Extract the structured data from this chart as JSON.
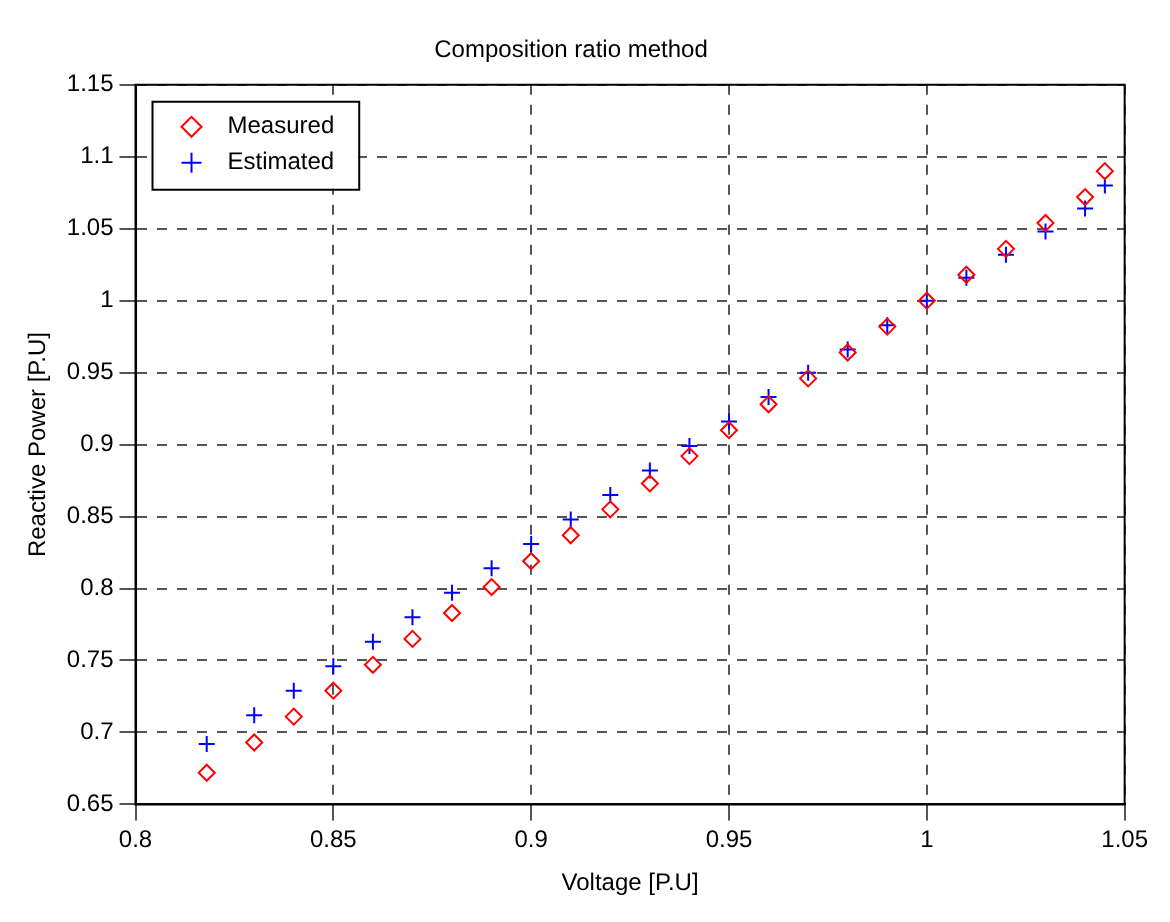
{
  "chart_data": {
    "type": "scatter",
    "title": "Composition ratio method",
    "xlabel": "Voltage [P.U]",
    "ylabel": "Reactive Power [P.U]",
    "x": [
      0.818,
      0.83,
      0.84,
      0.85,
      0.86,
      0.87,
      0.88,
      0.89,
      0.9,
      0.91,
      0.92,
      0.93,
      0.94,
      0.95,
      0.96,
      0.97,
      0.98,
      0.99,
      1.0,
      1.01,
      1.02,
      1.03,
      1.04,
      1.045
    ],
    "series": [
      {
        "name": "Measured",
        "color": "#ff0000",
        "marker": "diamond",
        "values": [
          0.672,
          0.693,
          0.711,
          0.729,
          0.747,
          0.765,
          0.783,
          0.801,
          0.819,
          0.837,
          0.855,
          0.873,
          0.892,
          0.91,
          0.928,
          0.946,
          0.964,
          0.982,
          1.0,
          1.018,
          1.036,
          1.054,
          1.072,
          1.09
        ]
      },
      {
        "name": "Estimated",
        "color": "#0000ff",
        "marker": "cross",
        "values": [
          0.692,
          0.712,
          0.729,
          0.746,
          0.763,
          0.78,
          0.797,
          0.814,
          0.831,
          0.848,
          0.865,
          0.882,
          0.899,
          0.916,
          0.933,
          0.95,
          0.966,
          0.983,
          1.0,
          1.016,
          1.032,
          1.048,
          1.064,
          1.08
        ]
      }
    ],
    "xlim": [
      0.8,
      1.05
    ],
    "xticks": [
      0.8,
      0.85,
      0.9,
      0.95,
      1,
      1.05
    ],
    "ylim": [
      0.65,
      1.15
    ],
    "yticks": [
      0.65,
      0.7,
      0.75,
      0.8,
      0.85,
      0.9,
      0.95,
      1,
      1.05,
      1.1,
      1.15
    ],
    "grid": true,
    "legend": "top left"
  }
}
